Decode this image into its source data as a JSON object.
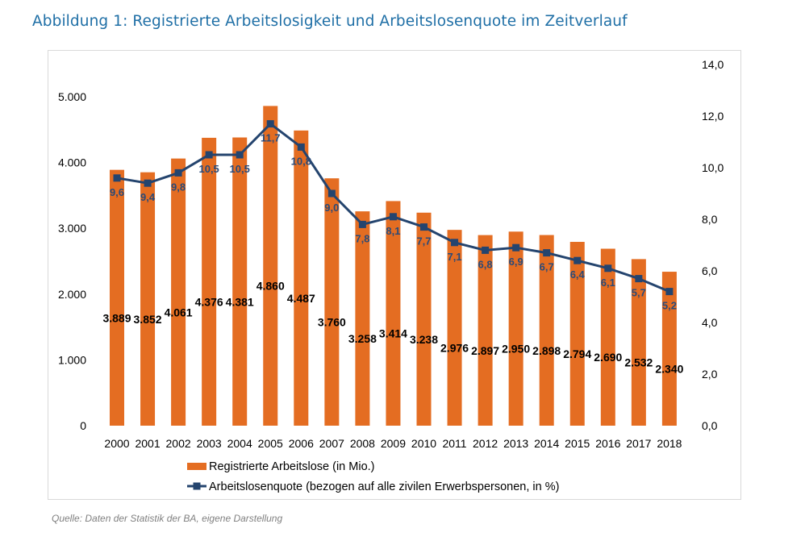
{
  "heading": "Abbildung 1: Registrierte Arbeitslosigkeit und Arbeitslosenquote im Zeitverlauf",
  "source": "Quelle: Daten der Statistik der BA, eigene Darstellung",
  "colors": {
    "bar": "#e46d22",
    "line": "#24446e",
    "heading": "#1f6fa6"
  },
  "chart_data": {
    "type": "bar",
    "categories": [
      "2000",
      "2001",
      "2002",
      "2003",
      "2004",
      "2005",
      "2006",
      "2007",
      "2008",
      "2009",
      "2010",
      "2011",
      "2012",
      "2013",
      "2014",
      "2015",
      "2016",
      "2017",
      "2018"
    ],
    "series": [
      {
        "name": "Registrierte Arbeitslose (in Mio.)",
        "type": "bar",
        "axis": "left",
        "values": [
          3889,
          3852,
          4061,
          4376,
          4381,
          4860,
          4487,
          3760,
          3258,
          3414,
          3238,
          2976,
          2897,
          2950,
          2898,
          2794,
          2690,
          2532,
          2340
        ],
        "labels": [
          "3.889",
          "3.852",
          "4.061",
          "4.376",
          "4.381",
          "4.860",
          "4.487",
          "3.760",
          "3.258",
          "3.414",
          "3.238",
          "2.976",
          "2.897",
          "2.950",
          "2.898",
          "2.794",
          "2.690",
          "2.532",
          "2.340"
        ]
      },
      {
        "name": "Arbeitslosenquote (bezogen auf alle zivilen Erwerbspersonen, in %)",
        "type": "line",
        "axis": "right",
        "values": [
          9.6,
          9.4,
          9.8,
          10.5,
          10.5,
          11.7,
          10.8,
          9.0,
          7.8,
          8.1,
          7.7,
          7.1,
          6.8,
          6.9,
          6.7,
          6.4,
          6.1,
          5.7,
          5.2
        ],
        "labels": [
          "9,6",
          "9,4",
          "9,8",
          "10,5",
          "10,5",
          "11,7",
          "10,8",
          "9,0",
          "7,8",
          "8,1",
          "7,7",
          "7,1",
          "6,8",
          "6,9",
          "6,7",
          "6,4",
          "6,1",
          "5,7",
          "5,2"
        ]
      }
    ],
    "y_left": {
      "range": [
        0,
        5000
      ],
      "ticks": [
        "0",
        "1.000",
        "2.000",
        "3.000",
        "4.000",
        "5.000"
      ]
    },
    "y_right": {
      "range": [
        0,
        14
      ],
      "ticks": [
        "0,0",
        "2,0",
        "4,0",
        "6,0",
        "8,0",
        "10,0",
        "12,0",
        "14,0"
      ]
    },
    "grid": false,
    "legend_position": "bottom"
  }
}
